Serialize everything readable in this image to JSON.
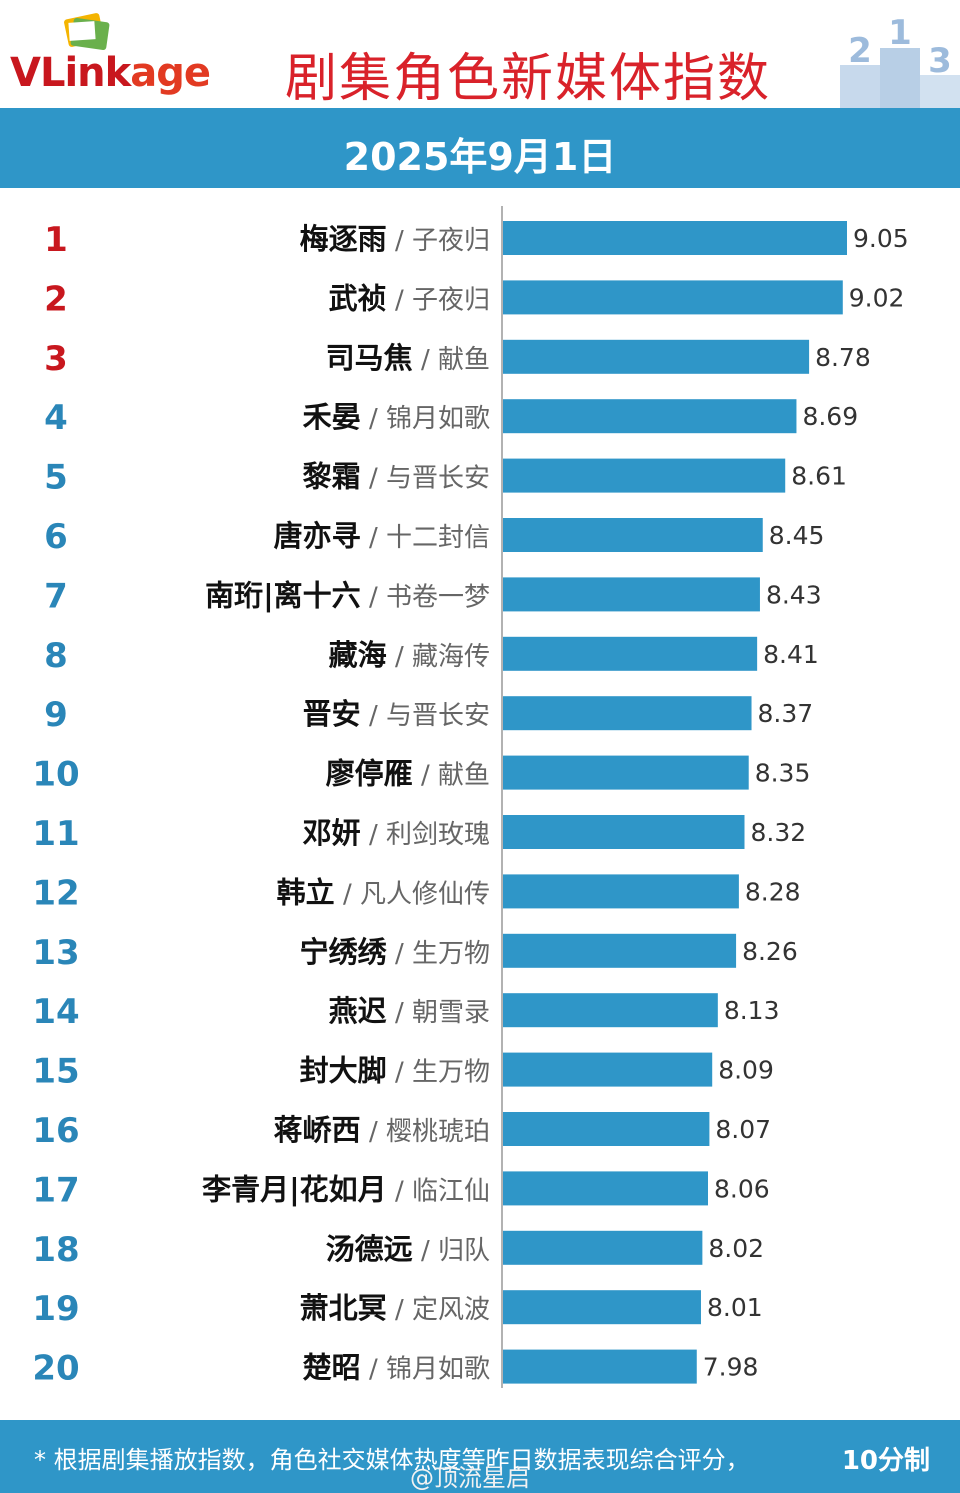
{
  "header": {
    "logo_text_prefix": "VLink",
    "logo_text_suffix": "age",
    "title": "剧集角色新媒体指数",
    "podium_numbers": [
      "2",
      "1",
      "3"
    ]
  },
  "banner": {
    "date": "2025年9月1日"
  },
  "colors": {
    "bar": "#2f96c8",
    "rank_top3": "#c8171e",
    "rank_other": "#2a86b8",
    "title": "#d9222a"
  },
  "chart_data": {
    "type": "bar",
    "orientation": "horizontal",
    "title": "剧集角色新媒体指数",
    "xlabel": "",
    "ylabel": "",
    "xlim": [
      6.6,
      9.4
    ],
    "categories": [
      {
        "rank": "1",
        "role": "梅逐雨",
        "drama": "子夜归",
        "value": 9.05,
        "label": "9.05"
      },
      {
        "rank": "2",
        "role": "武祯",
        "drama": "子夜归",
        "value": 9.02,
        "label": "9.02"
      },
      {
        "rank": "3",
        "role": "司马焦",
        "drama": "献鱼",
        "value": 8.78,
        "label": "8.78"
      },
      {
        "rank": "4",
        "role": "禾晏",
        "drama": "锦月如歌",
        "value": 8.69,
        "label": "8.69"
      },
      {
        "rank": "5",
        "role": "黎霜",
        "drama": "与晋长安",
        "value": 8.61,
        "label": "8.61"
      },
      {
        "rank": "6",
        "role": "唐亦寻",
        "drama": "十二封信",
        "value": 8.45,
        "label": "8.45"
      },
      {
        "rank": "7",
        "role": "南珩|离十六",
        "drama": "书卷一梦",
        "value": 8.43,
        "label": "8.43"
      },
      {
        "rank": "8",
        "role": "藏海",
        "drama": "藏海传",
        "value": 8.41,
        "label": "8.41"
      },
      {
        "rank": "9",
        "role": "晋安",
        "drama": "与晋长安",
        "value": 8.37,
        "label": "8.37"
      },
      {
        "rank": "10",
        "role": "廖停雁",
        "drama": "献鱼",
        "value": 8.35,
        "label": "8.35"
      },
      {
        "rank": "11",
        "role": "邓妍",
        "drama": "利剑玫瑰",
        "value": 8.32,
        "label": "8.32"
      },
      {
        "rank": "12",
        "role": "韩立",
        "drama": "凡人修仙传",
        "value": 8.28,
        "label": "8.28"
      },
      {
        "rank": "13",
        "role": "宁绣绣",
        "drama": "生万物",
        "value": 8.26,
        "label": "8.26"
      },
      {
        "rank": "14",
        "role": "燕迟",
        "drama": "朝雪录",
        "value": 8.13,
        "label": "8.13"
      },
      {
        "rank": "15",
        "role": "封大脚",
        "drama": "生万物",
        "value": 8.09,
        "label": "8.09"
      },
      {
        "rank": "16",
        "role": "蒋峤西",
        "drama": "樱桃琥珀",
        "value": 8.07,
        "label": "8.07"
      },
      {
        "rank": "17",
        "role": "李青月|花如月",
        "drama": "临江仙",
        "value": 8.06,
        "label": "8.06"
      },
      {
        "rank": "18",
        "role": "汤德远",
        "drama": "归队",
        "value": 8.02,
        "label": "8.02"
      },
      {
        "rank": "19",
        "role": "萧北冥",
        "drama": "定风波",
        "value": 8.01,
        "label": "8.01"
      },
      {
        "rank": "20",
        "role": "楚昭",
        "drama": "锦月如歌",
        "value": 7.98,
        "label": "7.98"
      }
    ],
    "separator": " / ",
    "grid": false,
    "legend": "none"
  },
  "footer": {
    "note": "* 根据剧集播放指数，角色社交媒体热度等昨日数据表现综合评分，",
    "note_tail": "10分制",
    "handle": "@顶流星启"
  }
}
